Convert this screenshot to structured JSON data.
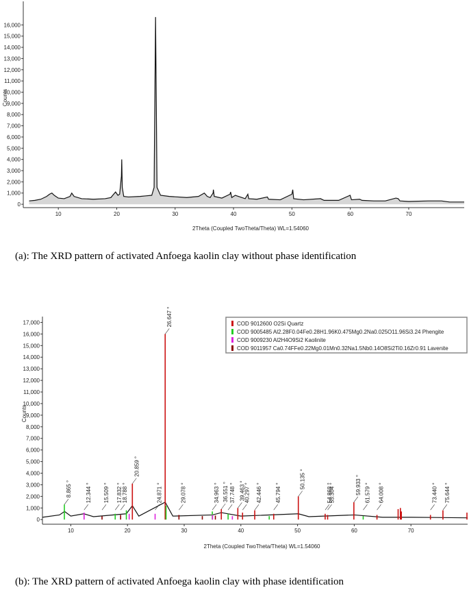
{
  "chart_data": [
    {
      "type": "line",
      "x_label": "2Theta (Coupled TwoTheta/Theta) WL=1.54060",
      "y_label": "Counts",
      "caption": "(a): The XRD pattern of activated Anfoega kaolin clay without phase identification",
      "color": "#111111",
      "x": [
        5,
        6,
        7,
        8,
        8.5,
        8.9,
        9.3,
        10,
        11,
        12,
        12.3,
        12.7,
        14,
        16,
        18,
        19,
        19.8,
        20.2,
        20.5,
        20.8,
        20.86,
        20.95,
        21.2,
        22,
        24,
        25,
        26,
        26.4,
        26.65,
        26.9,
        27.5,
        29,
        32,
        34,
        35,
        35.5,
        36,
        36.5,
        36.55,
        36.7,
        38,
        39.4,
        39.5,
        39.7,
        40.3,
        42,
        42.45,
        42.6,
        44,
        45.8,
        46,
        48,
        50,
        50.14,
        50.3,
        52,
        54.9,
        55.5,
        58,
        59.96,
        60.2,
        61.6,
        62,
        64,
        66,
        67.8,
        68.2,
        68.5,
        70,
        73.4,
        75.6,
        77,
        79.5
      ],
      "values": [
        300,
        350,
        450,
        700,
        900,
        1000,
        800,
        550,
        500,
        700,
        1000,
        700,
        500,
        450,
        500,
        600,
        1100,
        800,
        900,
        2500,
        4000,
        1500,
        700,
        650,
        700,
        750,
        800,
        1500,
        16700,
        1500,
        800,
        700,
        600,
        700,
        1000,
        700,
        600,
        1000,
        1300,
        700,
        550,
        900,
        1100,
        600,
        800,
        500,
        900,
        500,
        450,
        650,
        450,
        400,
        900,
        1300,
        500,
        400,
        500,
        350,
        350,
        800,
        400,
        450,
        350,
        300,
        300,
        550,
        500,
        300,
        250,
        300,
        300,
        200,
        200
      ],
      "xlim": [
        4,
        79.5
      ],
      "ylim": [
        -300,
        18100
      ],
      "xticks": [
        10,
        20,
        30,
        40,
        50,
        60,
        70
      ],
      "yticks": [
        0,
        {
          "value": 1000,
          "label": "1,000"
        },
        {
          "value": 2000,
          "label": "2,000"
        },
        {
          "value": 3000,
          "label": "3,000"
        },
        {
          "value": 4000,
          "label": "4,000"
        },
        {
          "value": 5000,
          "label": "5,000"
        },
        {
          "value": 6000,
          "label": "6,000"
        },
        {
          "value": 7000,
          "label": "7,000"
        },
        {
          "value": 8000,
          "label": "8,000"
        },
        {
          "value": 9000,
          "label": "9,000"
        },
        {
          "value": 10000,
          "label": "10,000"
        },
        {
          "value": 11000,
          "label": "11,000"
        },
        {
          "value": 12000,
          "label": "12,000"
        },
        {
          "value": 13000,
          "label": "13,000"
        },
        {
          "value": 14000,
          "label": "14,000"
        },
        {
          "value": 15000,
          "label": "15,000"
        },
        {
          "value": 16000,
          "label": "16,000"
        }
      ]
    },
    {
      "type": "stick",
      "x_label": "2Theta (Coupled TwoTheta/Theta) WL=1.54060",
      "y_label": "Counts",
      "caption": "(b): The XRD pattern of activated Anfoega kaolin clay with phase identification",
      "color": "#111111",
      "x": [
        5,
        8,
        8.9,
        10,
        12.3,
        14,
        19.8,
        20.86,
        22,
        26.65,
        28,
        35,
        36.55,
        40,
        50.14,
        52,
        60,
        65,
        70,
        80
      ],
      "values": [
        200,
        400,
        700,
        300,
        500,
        250,
        500,
        1200,
        300,
        1500,
        300,
        400,
        600,
        300,
        500,
        250,
        400,
        200,
        200,
        150
      ],
      "xlim": [
        5,
        80
      ],
      "ylim": [
        -400,
        17500
      ],
      "xticks": [
        10,
        20,
        30,
        40,
        50,
        60,
        70
      ],
      "yticks": [
        0,
        {
          "value": 1000,
          "label": "1,000"
        },
        {
          "value": 2000,
          "label": "2,000"
        },
        {
          "value": 3000,
          "label": "3,000"
        },
        {
          "value": 4000,
          "label": "4,000"
        },
        {
          "value": 5000,
          "label": "5,000"
        },
        {
          "value": 6000,
          "label": "6,000"
        },
        {
          "value": 7000,
          "label": "7,000"
        },
        {
          "value": 8000,
          "label": "8,000"
        },
        {
          "value": 9000,
          "label": "9,000"
        },
        {
          "value": 10000,
          "label": "10,000"
        },
        {
          "value": 11000,
          "label": "11,000"
        },
        {
          "value": 12000,
          "label": "12,000"
        },
        {
          "value": 13000,
          "label": "13,000"
        },
        {
          "value": 14000,
          "label": "14,000"
        },
        {
          "value": 15000,
          "label": "15,000"
        },
        {
          "value": 16000,
          "label": "16,000"
        },
        {
          "value": 17000,
          "label": "17,000"
        }
      ],
      "series": [
        {
          "name": "COD 9012600 O2Si Quartz",
          "color": "#cc1111",
          "x": [
            20.859,
            26.647,
            36.551,
            39.463,
            40.297,
            42.446,
            45.794,
            50.135,
            54.868,
            55.304,
            59.933,
            64.008,
            67.74,
            68.142,
            68.31,
            73.44,
            75.644,
            79.88
          ],
          "values": [
            3100,
            16000,
            900,
            1000,
            600,
            800,
            500,
            2000,
            500,
            400,
            1500,
            400,
            900,
            1000,
            700,
            400,
            800,
            600
          ]
        },
        {
          "name": "COD 9005485 Al2.28F0.04Fe0.28H1.96K0.475Mg0.2Na0.025O11.96Si3.24 Phengite",
          "color": "#22cc22",
          "x": [
            8.865,
            17.832,
            19.8,
            26.8,
            34.963,
            37.748,
            45.0,
            61.579
          ],
          "values": [
            1300,
            500,
            800,
            1200,
            700,
            500,
            300,
            300
          ]
        },
        {
          "name": "COD 9009230 Al2H4O9Si2 Kaolinite",
          "color": "#dd22dd",
          "x": [
            12.344,
            20.3,
            24.871,
            35.0,
            38.5
          ],
          "values": [
            600,
            500,
            500,
            400,
            300
          ]
        },
        {
          "name": "COD 9011957 Ca0.74FFe0.22Mg0.01Mn0.32Na1.5Nb0.14O8Si2Ti0.16Zr0.91 Lavenite",
          "color": "#8b0000",
          "x": [
            15.509,
            18.788,
            29.078,
            33.2,
            35.5
          ],
          "values": [
            300,
            400,
            400,
            300,
            350
          ]
        }
      ],
      "annotations": [
        {
          "x": 8.865,
          "label": "8.865 °"
        },
        {
          "x": 12.344,
          "label": "12.344 °"
        },
        {
          "x": 15.509,
          "label": "15.509 °"
        },
        {
          "x": 17.832,
          "label": "17.832 °"
        },
        {
          "x": 18.788,
          "label": "18.788 °"
        },
        {
          "x": 20.859,
          "label": "20.859 °"
        },
        {
          "x": 24.871,
          "label": "24.871 °"
        },
        {
          "x": 26.647,
          "label": "26.647 °"
        },
        {
          "x": 29.078,
          "label": "29.078 °"
        },
        {
          "x": 34.963,
          "label": "34.963 °"
        },
        {
          "x": 36.551,
          "label": "36.551 °"
        },
        {
          "x": 37.748,
          "label": "37.748 °"
        },
        {
          "x": 39.463,
          "label": "39.463 °"
        },
        {
          "x": 40.297,
          "label": "40.297 °"
        },
        {
          "x": 42.446,
          "label": "42.446 °"
        },
        {
          "x": 45.794,
          "label": "45.794 °"
        },
        {
          "x": 50.135,
          "label": "50.135 °"
        },
        {
          "x": 54.868,
          "label": "54.868 °"
        },
        {
          "x": 55.304,
          "label": "55.304 °"
        },
        {
          "x": 59.933,
          "label": "59.933 °"
        },
        {
          "x": 61.579,
          "label": "61.579 °"
        },
        {
          "x": 64.008,
          "label": "64.008 °"
        },
        {
          "x": 73.44,
          "label": "73.440 °"
        },
        {
          "x": 75.644,
          "label": "75.644 °"
        }
      ]
    }
  ]
}
